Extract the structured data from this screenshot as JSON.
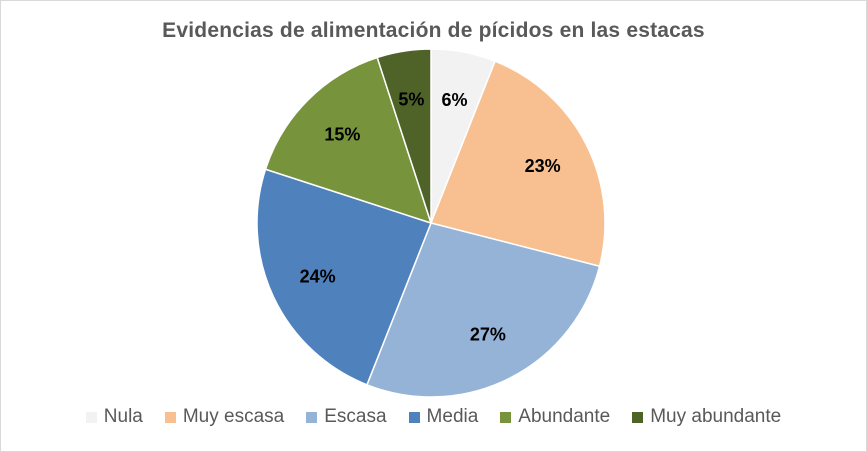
{
  "chart_data": {
    "type": "pie",
    "title": "Evidencias de alimentación de pícidos en las estacas",
    "categories": [
      "Nula",
      "Muy escasa",
      "Escasa",
      "Media",
      "Abundante",
      "Muy abundante"
    ],
    "values": [
      6,
      23,
      27,
      24,
      15,
      5
    ],
    "labels": [
      "6%",
      "23%",
      "27%",
      "24%",
      "15%",
      "5%"
    ],
    "colors": [
      "#F2F2F2",
      "#F8C090",
      "#95B3D7",
      "#4F81BD",
      "#77933C",
      "#4F6228"
    ],
    "start_angle": "12 o'clock, clockwise",
    "legend_position": "bottom"
  }
}
